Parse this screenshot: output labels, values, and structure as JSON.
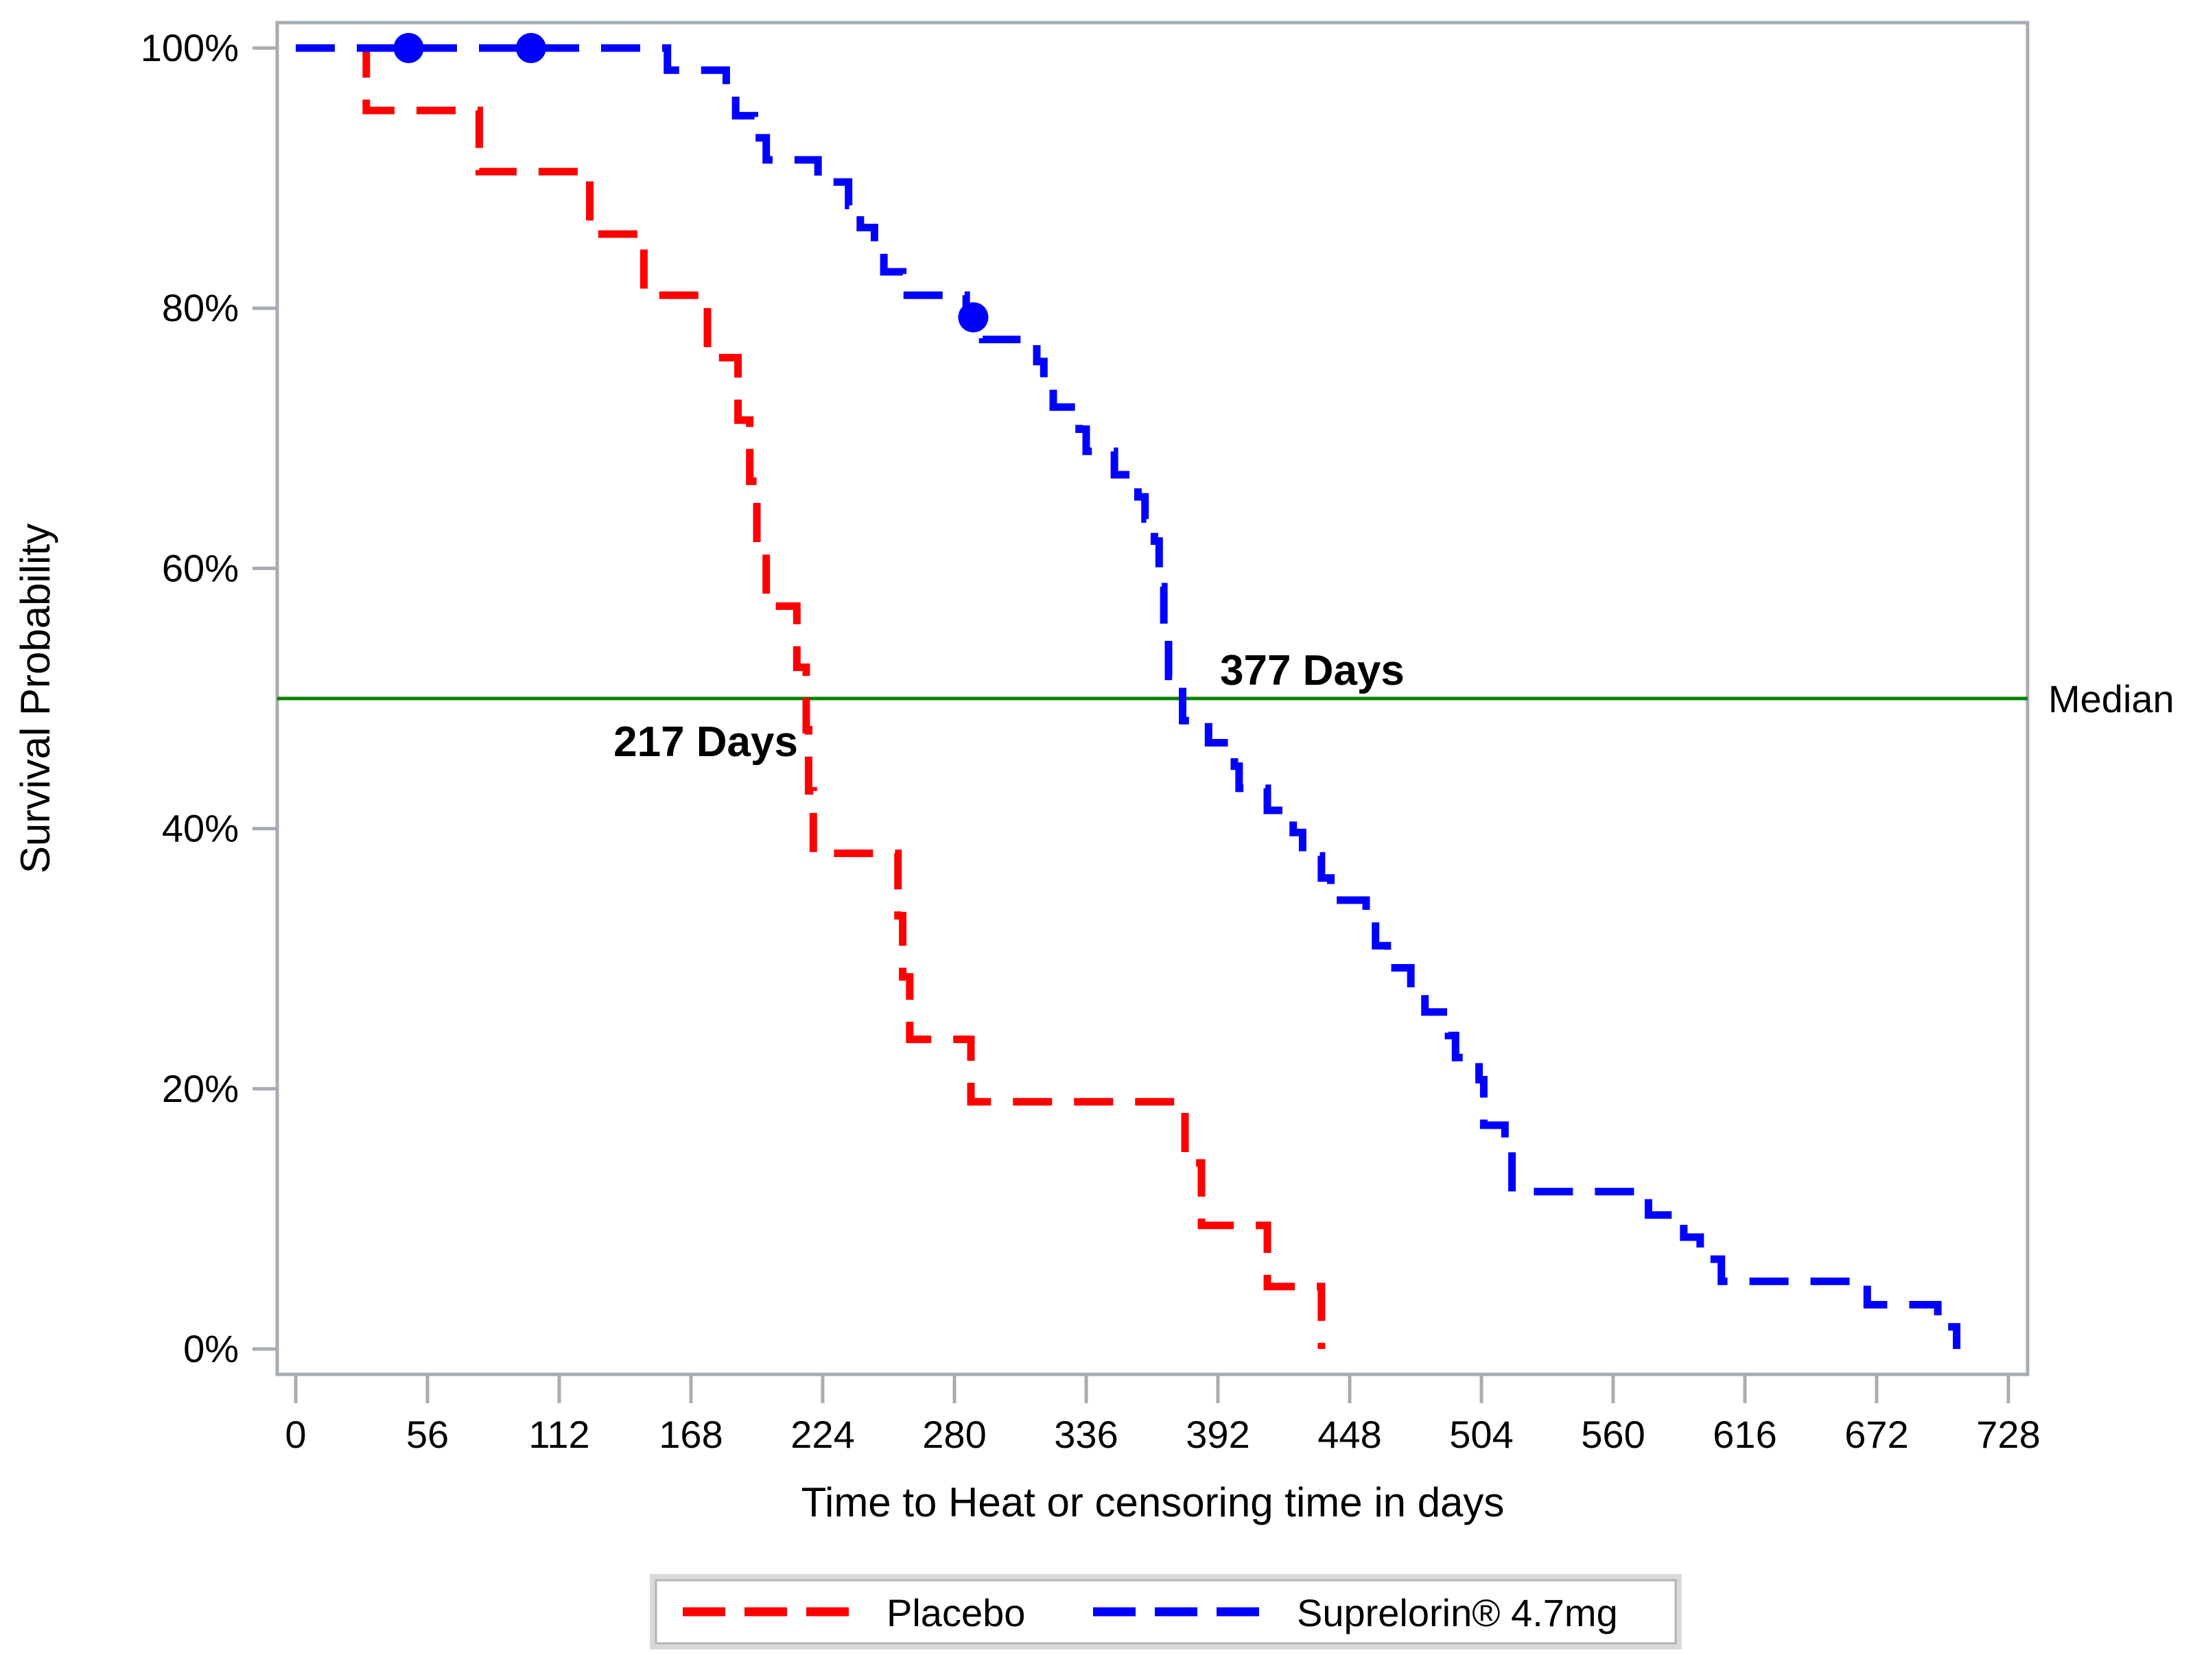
{
  "chart_data": {
    "type": "line",
    "subtype": "kaplan-meier-step",
    "title": "",
    "xlabel": "Time to Heat or censoring time in days",
    "ylabel": "Survival Probability",
    "xlim": [
      0,
      737
    ],
    "ylim": [
      0,
      100
    ],
    "grid": false,
    "x_ticks": [
      0,
      56,
      112,
      168,
      224,
      280,
      336,
      392,
      448,
      504,
      560,
      616,
      672,
      728
    ],
    "y_ticks": [
      {
        "label": "100%",
        "value": 100
      },
      {
        "label": "80%",
        "value": 80
      },
      {
        "label": "60%",
        "value": 60
      },
      {
        "label": "40%",
        "value": 40
      },
      {
        "label": "20%",
        "value": 20
      },
      {
        "label": "0%",
        "value": 0
      }
    ],
    "series": [
      {
        "name": "Placebo",
        "color": "#ff0000",
        "line_style": "dashed",
        "median_days": 217,
        "steps": [
          [
            0,
            100
          ],
          [
            30,
            95.2
          ],
          [
            78,
            90.5
          ],
          [
            125,
            85.7
          ],
          [
            148,
            81.0
          ],
          [
            175,
            76.2
          ],
          [
            188,
            71.4
          ],
          [
            193,
            66.7
          ],
          [
            196,
            61.9
          ],
          [
            200,
            57.1
          ],
          [
            213,
            52.4
          ],
          [
            217,
            47.6
          ],
          [
            218,
            42.9
          ],
          [
            220,
            38.1
          ],
          [
            256,
            33.3
          ],
          [
            258,
            28.6
          ],
          [
            261,
            23.8
          ],
          [
            287,
            19.0
          ],
          [
            378,
            14.3
          ],
          [
            385,
            9.5
          ],
          [
            413,
            4.8
          ],
          [
            436,
            0
          ]
        ],
        "censor_marks": []
      },
      {
        "name": "Suprelorin® 4.7mg",
        "color": "#0000ff",
        "line_style": "dashed",
        "median_days": 377,
        "steps": [
          [
            0,
            100
          ],
          [
            158,
            98.3
          ],
          [
            183,
            96.6
          ],
          [
            187,
            94.8
          ],
          [
            195,
            93.1
          ],
          [
            200,
            91.4
          ],
          [
            222,
            89.7
          ],
          [
            235,
            87.9
          ],
          [
            240,
            86.2
          ],
          [
            246,
            84.5
          ],
          [
            250,
            82.8
          ],
          [
            258,
            81.0
          ],
          [
            285,
            79.3
          ],
          [
            292,
            77.6
          ],
          [
            315,
            75.9
          ],
          [
            318,
            74.1
          ],
          [
            322,
            72.4
          ],
          [
            333,
            70.7
          ],
          [
            336,
            69.0
          ],
          [
            348,
            67.2
          ],
          [
            358,
            65.5
          ],
          [
            361,
            63.8
          ],
          [
            365,
            62.1
          ],
          [
            367,
            58.6
          ],
          [
            369,
            55.2
          ],
          [
            371,
            51.7
          ],
          [
            377,
            48.3
          ],
          [
            388,
            46.6
          ],
          [
            399,
            44.8
          ],
          [
            401,
            43.1
          ],
          [
            413,
            41.4
          ],
          [
            424,
            39.7
          ],
          [
            428,
            37.9
          ],
          [
            436,
            36.2
          ],
          [
            440,
            34.5
          ],
          [
            455,
            32.8
          ],
          [
            459,
            31.0
          ],
          [
            464,
            29.3
          ],
          [
            474,
            27.6
          ],
          [
            480,
            25.9
          ],
          [
            490,
            24.1
          ],
          [
            493,
            22.4
          ],
          [
            503,
            20.7
          ],
          [
            505,
            17.2
          ],
          [
            514,
            15.5
          ],
          [
            517,
            12.1
          ],
          [
            575,
            10.3
          ],
          [
            590,
            8.6
          ],
          [
            597,
            6.9
          ],
          [
            606,
            5.2
          ],
          [
            668,
            3.4
          ],
          [
            698,
            1.7
          ],
          [
            706,
            0
          ]
        ],
        "censor_marks": [
          [
            48,
            100
          ],
          [
            100,
            100
          ],
          [
            288,
            79.3
          ]
        ]
      }
    ],
    "median_line": {
      "value": 50,
      "color": "#008000",
      "label": "Median"
    },
    "annotations": [
      {
        "text": "217 Days",
        "color": "#ff0000",
        "day": 217,
        "percent": 47.6,
        "side": "left"
      },
      {
        "text": "377 Days",
        "color": "#0000ff",
        "day": 377,
        "percent": 52.5,
        "side": "right"
      }
    ],
    "legend_position": "bottom"
  },
  "legend": {
    "items": [
      {
        "label": "Placebo",
        "color": "#ff0000"
      },
      {
        "label": "Suprelorin® 4.7mg",
        "color": "#0000ff"
      }
    ]
  },
  "colors": {
    "placebo": "#ff0000",
    "suprelorin": "#0000ff",
    "median_line": "#008000",
    "axis": "#a7adb2",
    "text": "#000000",
    "background": "#ffffff"
  }
}
